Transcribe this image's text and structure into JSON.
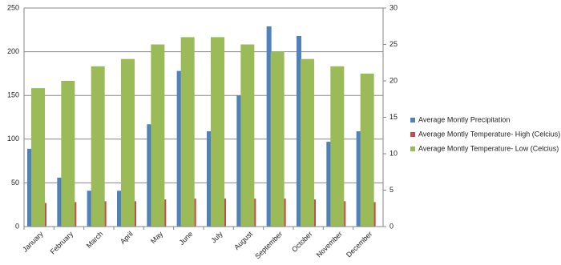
{
  "chart_data": {
    "type": "bar",
    "categories": [
      "January",
      "February",
      "March",
      "April",
      "May",
      "June",
      "July",
      "August",
      "September",
      "October",
      "November",
      "December"
    ],
    "series": [
      {
        "name": "Average Montly Precipitation",
        "color": "#4f81bd",
        "values": [
          89,
          56,
          41,
          41,
          117,
          178,
          109,
          150,
          229,
          218,
          97,
          109
        ]
      },
      {
        "name": "Average Montly Temperature- High (Celcius)",
        "color": "#c0504d",
        "values": [
          27,
          28,
          29,
          29,
          31,
          32,
          32,
          32,
          32,
          31,
          29,
          28
        ]
      },
      {
        "name": "Average Montly Temperature- Low (Celcius)",
        "color": "#9bbb59",
        "axis": "y2",
        "values": [
          19,
          20,
          22,
          23,
          25,
          26,
          26,
          25,
          24,
          23,
          22,
          21
        ]
      }
    ],
    "ylim": [
      0,
      250
    ],
    "yticks": [
      0,
      50,
      100,
      150,
      200,
      250
    ],
    "y2lim": [
      0,
      30
    ],
    "y2ticks": [
      0,
      5,
      10,
      15,
      20,
      25,
      30
    ],
    "grid": true,
    "legend": "right"
  }
}
